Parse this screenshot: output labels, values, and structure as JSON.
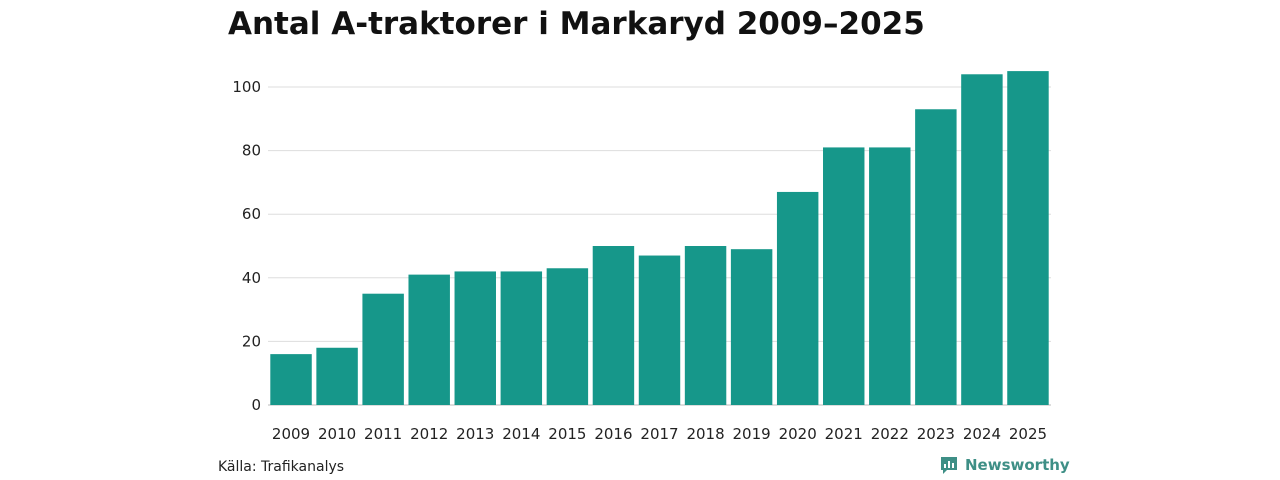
{
  "header": {
    "title": "Antal A-traktorer i Markaryd 2009–2025"
  },
  "footer": {
    "source": "Källa: Trafikanalys",
    "brand": "Newsworthy",
    "brand_icon": "newsworthy-logo-icon",
    "brand_color": "#3e8f86"
  },
  "chart_data": {
    "type": "bar",
    "title": "Antal A-traktorer i Markaryd 2009–2025",
    "xlabel": "",
    "ylabel": "",
    "categories": [
      "2009",
      "2010",
      "2011",
      "2012",
      "2013",
      "2014",
      "2015",
      "2016",
      "2017",
      "2018",
      "2019",
      "2020",
      "2021",
      "2022",
      "2023",
      "2024",
      "2025"
    ],
    "values": [
      16,
      18,
      35,
      41,
      42,
      42,
      43,
      50,
      47,
      50,
      49,
      67,
      81,
      81,
      93,
      104,
      105
    ],
    "ylim": [
      0,
      105
    ],
    "yticks": [
      0,
      20,
      40,
      60,
      80,
      100
    ],
    "grid": true,
    "legend": "none",
    "bar_color": "#16978a",
    "grid_color": "#dddddd"
  }
}
